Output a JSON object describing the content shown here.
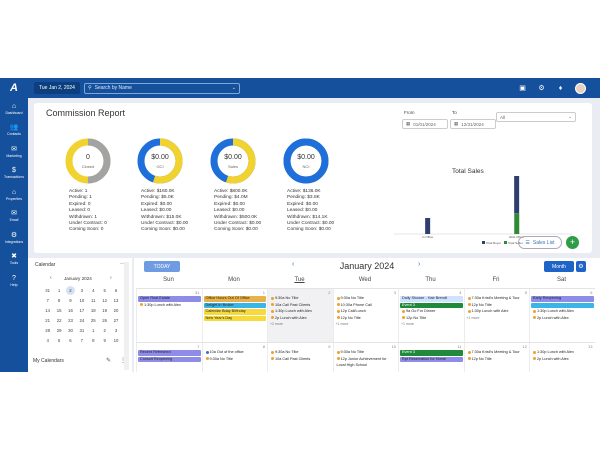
{
  "topbar": {
    "logo": "A",
    "date": "Tue Jan 2, 2024",
    "search_placeholder": "Search by Name",
    "icons": [
      "chat-icon",
      "gear-icon",
      "bell-icon",
      "avatar"
    ]
  },
  "sidebar": {
    "items": [
      {
        "label": "Dashboard",
        "icon": "⌂"
      },
      {
        "label": "Contacts",
        "icon": "👥"
      },
      {
        "label": "Marketing",
        "icon": "✉"
      },
      {
        "label": "Transactions",
        "icon": "$"
      },
      {
        "label": "Properties",
        "icon": "⌂"
      },
      {
        "label": "Email",
        "icon": "✉"
      },
      {
        "label": "Integrations",
        "icon": "⚙"
      },
      {
        "label": "Tools",
        "icon": "✖"
      },
      {
        "label": "Help",
        "icon": "?"
      }
    ]
  },
  "commission": {
    "title": "Commission Report",
    "from_label": "From",
    "to_label": "To",
    "from_date": "01/01/2024",
    "to_date": "12/31/2024",
    "filter": "All",
    "donuts": [
      {
        "value": "0",
        "label": "Closed",
        "frac": 0.5
      },
      {
        "value": "$0.00",
        "label": "GCI",
        "frac": 0.55
      },
      {
        "value": "$0.00",
        "label": "Sales",
        "frac": 0.55
      },
      {
        "value": "$0.00",
        "label": "NCI",
        "frac": 0.5
      }
    ],
    "stats": [
      [
        "Active: 1",
        "Pending: 1",
        "Expired: 0",
        "Leased: 0",
        "Withdrawn: 1",
        "Under Contract: 0",
        "Coming Soon: 0"
      ],
      [
        "Active: $160.0K",
        "Pending: $5.0K",
        "Expired: $0.00",
        "Leased: $0.00",
        "Withdrawn: $15.0K",
        "Under Contract: $0.00",
        "Coming Soon: $0.00"
      ],
      [
        "Active: $800.0K",
        "Pending: $4.0M",
        "Expired: $0.00",
        "Leased: $0.00",
        "Withdrawn: $500.0K",
        "Under Contract: $0.00",
        "Coming Soon: $0.00"
      ],
      [
        "Active: $136.0K",
        "Pending: $3.8K",
        "Expired: $0.00",
        "Leased: $0.00",
        "Withdrawn: $14.1K",
        "Under Contract: $0.00",
        "Coming Soon: $0.00"
      ]
    ],
    "sales_list_label": "Sales List",
    "add_label": "+"
  },
  "chart_data": {
    "type": "bar",
    "title": "Total Sales",
    "categories": [
      "In Office",
      "Elite Office"
    ],
    "series": [
      {
        "name": "Total Buyer",
        "values": [
          1,
          2.4
        ]
      },
      {
        "name": "Total Seller",
        "values": [
          0,
          1.3
        ]
      }
    ],
    "ylim": [
      0,
      3
    ],
    "legend": "bottom",
    "colors": {
      "Total Buyer": "#2f3e6e",
      "Total Seller": "#2f8a33"
    }
  },
  "mini_calendar": {
    "title": "Calendar",
    "month": "January 2024",
    "days": [
      "31",
      "1",
      "2",
      "3",
      "4",
      "5",
      "6",
      "7",
      "8",
      "9",
      "10",
      "11",
      "12",
      "13",
      "14",
      "15",
      "16",
      "17",
      "18",
      "19",
      "20",
      "21",
      "22",
      "23",
      "24",
      "25",
      "26",
      "27",
      "28",
      "29",
      "30",
      "31",
      "1",
      "2",
      "3",
      "4",
      "5",
      "6",
      "7",
      "8",
      "9",
      "10"
    ],
    "selected_index": 2,
    "my_calendars": "My Calendars"
  },
  "calendar": {
    "today_label": "TODAY",
    "title": "January 2024",
    "view": "Month",
    "days": [
      "Sun",
      "Mon",
      "Tue",
      "Wed",
      "Thu",
      "Fri",
      "Sat"
    ],
    "today_index": 2,
    "rows": [
      {
        "dates": [
          "31",
          "1",
          "2",
          "3",
          "4",
          "5",
          "6"
        ],
        "cells": [
          {
            "events": [
              {
                "t": "Open Real Estate",
                "bg": "#8f8ce8",
                "bar": true
              },
              {
                "t": "1:30p Lunch with Alex",
                "dot": "#f0a030"
              }
            ]
          },
          {
            "events": [
              {
                "t": "Office Hours Out Of Office",
                "bg": "#e8b24a",
                "bar": true
              },
              {
                "t": "Delight In Broker",
                "bg": "#3ab5e8",
                "bar": true
              },
              {
                "t": "Calendar Bday Birthday",
                "bg": "#f6d93a",
                "bar": true
              },
              {
                "t": "New Year's Day",
                "bg": "#f6d93a",
                "bar": true
              }
            ]
          },
          {
            "shade": true,
            "events": [
              {
                "t": "9:30a No Title",
                "dot": "#f0a030"
              },
              {
                "t": "10a Call Past Clients",
                "dot": "#f0a030"
              },
              {
                "t": "1:30p Lunch with Alex",
                "dot": "#f0a030"
              },
              {
                "t": "2p Lunch with Alex",
                "dot": "#f0a030"
              }
            ],
            "more": "+2 more"
          },
          {
            "events": [
              {
                "t": "9:30a No Title",
                "dot": "#f0a030"
              },
              {
                "t": "10:30a Phone Call",
                "dot": "#f0a030"
              },
              {
                "t": "12p Call/Lunch",
                "dot": "#f0a030"
              },
              {
                "t": "12p No Title",
                "dot": "#f0a030"
              }
            ],
            "more": "+1 more"
          },
          {
            "events": [
              {
                "t": "Daily Shower - Hair Brendt",
                "bg": "#cfe3ff",
                "bar": true
              },
              {
                "t": "Event 3",
                "bg": "#1f8a3a",
                "bar": true,
                "light": true
              },
              {
                "t": "9a Go For Dinner",
                "dot": "#f0a030"
              },
              {
                "t": "12p No Title",
                "dot": "#f0a030"
              }
            ],
            "more": "+1 more"
          },
          {
            "events": [
              {
                "t": "7:30a Kristi's Meeting & Tour",
                "dot": "#f0a030"
              },
              {
                "t": "12p No Title",
                "dot": "#f0a030"
              },
              {
                "t": "1:30p Lunch with Alex",
                "dot": "#f0a030"
              }
            ],
            "more": "+1 more"
          },
          {
            "events": [
              {
                "t": "Early Reopening",
                "bg": "#8f8ce8",
                "bar": true
              },
              {
                "t": "",
                "bg": "#3ab5e8",
                "bar": true
              },
              {
                "t": "1:30p Lunch with Alex",
                "dot": "#f0a030"
              },
              {
                "t": "2p Lunch with Alex",
                "dot": "#f0a030"
              }
            ]
          }
        ]
      },
      {
        "dates": [
          "7",
          "8",
          "9",
          "10",
          "11",
          "12",
          "13"
        ],
        "cells": [
          {
            "events": [
              {
                "t": "Recent Refreshed",
                "bg": "#8f8ce8",
                "bar": true
              },
              {
                "t": "Consult Reopening",
                "bg": "#8f8ce8",
                "bar": true
              }
            ]
          },
          {
            "events": [
              {
                "t": "10a Out of the office",
                "dot": "#3a6fd0"
              },
              {
                "t": "9:30a No Title",
                "dot": "#f0a030"
              }
            ]
          },
          {
            "events": [
              {
                "t": "9:30a No Title",
                "dot": "#f0a030"
              },
              {
                "t": "10a Call Past Clients",
                "dot": "#f0a030"
              }
            ]
          },
          {
            "events": [
              {
                "t": "9:30a No Title",
                "dot": "#f0a030"
              },
              {
                "t": "12p Junior Achievement for",
                "dot": "#f0a030"
              },
              {
                "t": "Local High School",
                "dot": ""
              }
            ]
          },
          {
            "events": [
              {
                "t": "Event 3",
                "bg": "#1f8a3a",
                "bar": true,
                "light": true
              },
              {
                "t": "Rpt Reservation for Home",
                "bg": "#8f8ce8",
                "bar": true
              }
            ]
          },
          {
            "events": [
              {
                "t": "7:30a Kristi's Meeting & Tour",
                "dot": "#f0a030"
              },
              {
                "t": "12p No Title",
                "dot": "#f0a030"
              }
            ]
          },
          {
            "events": [
              {
                "t": "1:30p Lunch with Alex",
                "dot": "#f0a030"
              },
              {
                "t": "2p Lunch with Alex",
                "dot": "#f0a030"
              }
            ]
          }
        ]
      }
    ]
  },
  "colors": {
    "brand": "#14509c",
    "donut_gray": "#a3a3a3",
    "donut_yellow": "#f2d22e",
    "donut_blue": "#1e6fd9"
  }
}
